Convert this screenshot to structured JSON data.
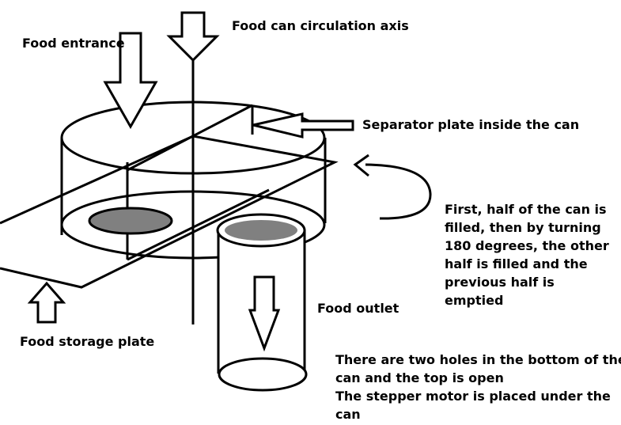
{
  "labels": {
    "food_entrance": "Food entrance",
    "circulation_axis": "Food can circulation axis",
    "separator_plate": "Separator plate inside the can",
    "rotation_note": [
      "First, half of the can is",
      "filled, then by turning",
      "180 degrees, the other",
      "half is filled and the",
      "previous half is",
      "emptied"
    ],
    "food_outlet": "Food outlet",
    "storage_plate": "Food storage plate",
    "bottom_note": [
      "There are two holes in the bottom of the",
      "can and the top is open",
      "The stepper motor is placed under the",
      "can"
    ]
  },
  "colors": {
    "stroke": "#000000",
    "hole_fill": "#808080",
    "background": "#ffffff"
  }
}
